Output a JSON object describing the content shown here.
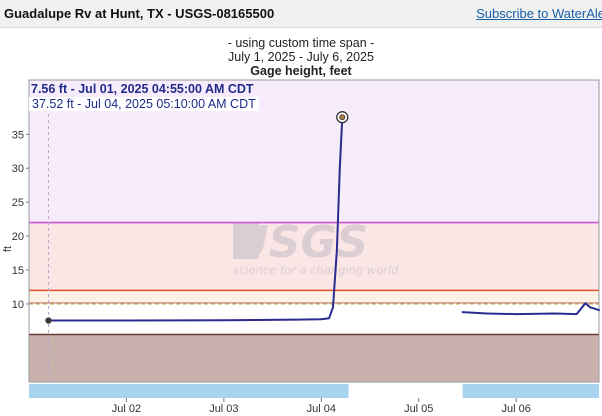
{
  "header": {
    "site_title": "Guadalupe Rv at Hunt, TX - USGS-08165500",
    "subscribe_label": "Subscribe to WaterAle"
  },
  "chart_data": {
    "type": "line",
    "caption_line1": "- using custom time span -",
    "caption_line2": "July 1, 2025 - July 6, 2025",
    "title": "Gage height, feet",
    "ylabel": "ft",
    "xlabel": "",
    "ylim": [
      -1.5,
      43
    ],
    "xlim": [
      0,
      5.85
    ],
    "x_unit_note": "days since Jul 01, 2025 00:00 CDT",
    "yticks": [
      10,
      15,
      20,
      25,
      30,
      35
    ],
    "xticks": [
      {
        "label": "Jul 02",
        "x": 1.0
      },
      {
        "label": "Jul 03",
        "x": 2.0
      },
      {
        "label": "Jul 04",
        "x": 3.0
      },
      {
        "label": "Jul 05",
        "x": 4.0
      },
      {
        "label": "Jul 06",
        "x": 5.0
      }
    ],
    "threshold_bands": [
      {
        "name": "moderate-to-major",
        "from": 22,
        "to": 43,
        "fill": "#f7ecfb",
        "line": "#c855d2",
        "line_at": 22
      },
      {
        "name": "minor-to-moderate",
        "from": 12,
        "to": 22,
        "fill": "#fbe6e6",
        "line": "#e0502a",
        "line_at": 12
      },
      {
        "name": "action-to-minor",
        "from": 10,
        "to": 12,
        "fill": "#fdf1e6",
        "line": "#c9a64a",
        "line_at": 10,
        "dashed": true
      },
      {
        "name": "below-base",
        "from": -1.5,
        "to": 5.5,
        "fill": "#c9b1ae",
        "line": "#6b3a32",
        "line_at": 5.5
      }
    ],
    "series": [
      {
        "name": "",
        "color": "#2b2b8f",
        "segments": [
          [
            [
              0.2,
              7.56
            ],
            [
              1.0,
              7.56
            ],
            [
              2.0,
              7.6
            ],
            [
              2.75,
              7.7
            ],
            [
              3.0,
              7.75
            ],
            [
              3.08,
              7.9
            ],
            [
              3.12,
              9.5
            ],
            [
              3.16,
              18.0
            ],
            [
              3.19,
              30.0
            ],
            [
              3.215,
              37.52
            ]
          ],
          [
            [
              4.45,
              8.8
            ],
            [
              4.7,
              8.6
            ],
            [
              5.0,
              8.5
            ],
            [
              5.4,
              8.6
            ],
            [
              5.62,
              8.5
            ],
            [
              5.66,
              9.2
            ],
            [
              5.71,
              10.1
            ],
            [
              5.76,
              9.5
            ],
            [
              5.85,
              9.1
            ]
          ]
        ]
      }
    ],
    "markers": [
      {
        "x": 0.2,
        "y": 7.56,
        "style": "dot"
      },
      {
        "x": 3.215,
        "y": 37.52,
        "style": "ring"
      }
    ],
    "tooltip_primary": "7.56 ft - Jul 01, 2025 04:55:00 AM CDT",
    "tooltip_secondary": "37.52 ft - Jul 04, 2025 05:10:00 AM CDT",
    "data_availability_bars": [
      [
        0.0,
        3.28
      ],
      [
        4.45,
        5.85
      ]
    ],
    "watermark": {
      "logo": "USGS",
      "tagline": "science for a changing world"
    },
    "grid": false,
    "legend": "none",
    "colors": {
      "line": "#2b2b8f",
      "avail_bar": "#a7d3f0",
      "marker_line": "#b9a6c8"
    }
  }
}
